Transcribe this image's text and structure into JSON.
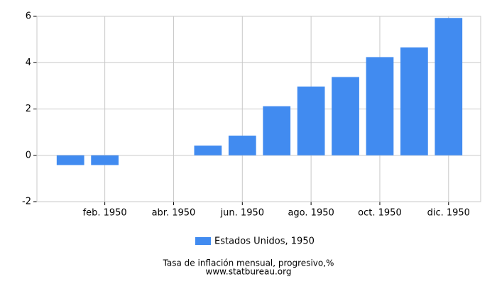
{
  "chart_data": {
    "type": "bar",
    "categories": [
      null,
      "feb. 1950",
      null,
      "abr. 1950",
      null,
      "jun. 1950",
      null,
      "ago. 1950",
      null,
      "oct. 1950",
      null,
      "dic. 1950"
    ],
    "series": [
      {
        "name": "Estados Unidos, 1950",
        "color": "#418bf0",
        "values": [
          -0.42,
          -0.42,
          0,
          0,
          0.42,
          0.85,
          2.12,
          2.97,
          3.38,
          4.24,
          4.66,
          5.93
        ]
      }
    ],
    "ylim": [
      -2,
      6
    ],
    "yticks": [
      -2,
      0,
      2,
      4,
      6
    ],
    "grid": true,
    "footer": [
      "Tasa de inflación mensual, progresivo,%",
      "www.statbureau.org"
    ]
  }
}
